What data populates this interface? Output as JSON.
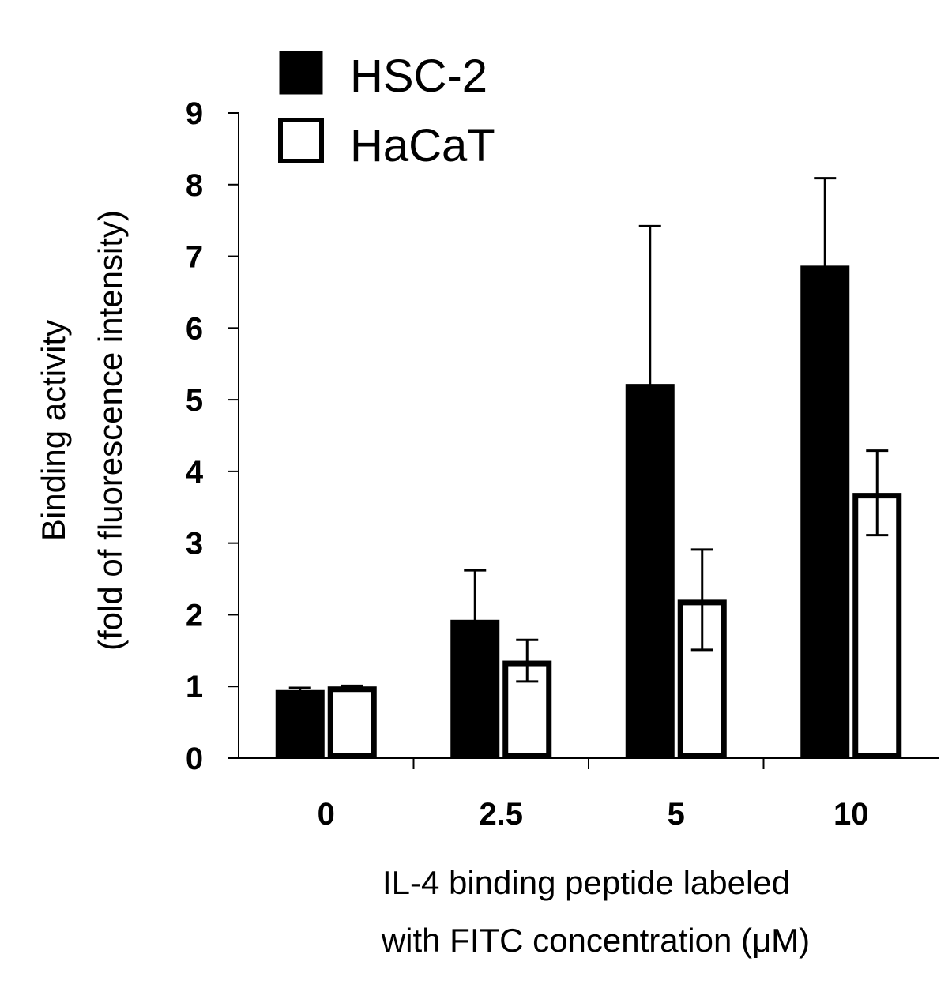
{
  "chart_data": {
    "type": "bar",
    "categories": [
      "0",
      "2.5",
      "5",
      "10"
    ],
    "series": [
      {
        "name": "HSC-2",
        "values": [
          0.95,
          1.93,
          5.22,
          6.87
        ],
        "errors": [
          0.03,
          0.69,
          2.2,
          1.22
        ],
        "fill": "#000000"
      },
      {
        "name": "HaCaT",
        "values": [
          1.0,
          1.36,
          2.21,
          3.7
        ],
        "errors": [
          0.01,
          0.29,
          0.7,
          0.59
        ],
        "fill": "#ffffff"
      }
    ],
    "ylim": [
      0,
      9
    ],
    "yticks": [
      "0",
      "1",
      "2",
      "3",
      "4",
      "5",
      "6",
      "7",
      "8",
      "9"
    ],
    "ylabel_line1": "Binding activity",
    "ylabel_line2": "(fold of fluorescence intensity)",
    "xlabel_line1": "IL-4 binding peptide labeled",
    "xlabel_line2": "with FITC concentration (μM)",
    "legend_position": "top-left",
    "grid": false
  }
}
